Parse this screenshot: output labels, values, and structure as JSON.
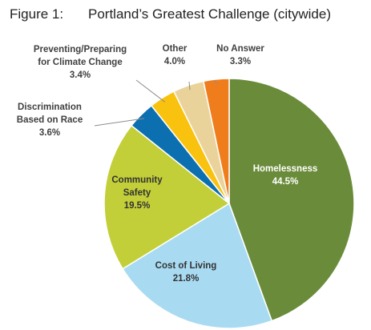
{
  "figure_label": "Figure 1:",
  "chart_data": {
    "type": "pie",
    "title": "Portland’s Greatest Challenge (citywide)",
    "slices": [
      {
        "label": "Homelessness",
        "value": 44.5,
        "display": "44.5%",
        "color": "#6a8c3a"
      },
      {
        "label": "Cost of Living",
        "value": 21.8,
        "display": "21.8%",
        "color": "#a8dbf2"
      },
      {
        "label": "Community Safety",
        "label_lines": [
          "Community",
          "Safety"
        ],
        "value": 19.5,
        "display": "19.5%",
        "color": "#c2cf38"
      },
      {
        "label": "Discrimination Based on Race",
        "label_lines": [
          "Discrimination",
          "Based on Race"
        ],
        "value": 3.6,
        "display": "3.6%",
        "color": "#0c6fb0"
      },
      {
        "label": "Preventing/Preparing for Climate Change",
        "label_lines": [
          "Preventing/Preparing",
          "for Climate Change"
        ],
        "value": 3.4,
        "display": "3.4%",
        "color": "#f9c20e"
      },
      {
        "label": "Other",
        "value": 4.0,
        "display": "4.0%",
        "color": "#ead39a"
      },
      {
        "label": "No Answer",
        "value": 3.3,
        "display": "3.3%",
        "color": "#f07d1b"
      }
    ]
  }
}
